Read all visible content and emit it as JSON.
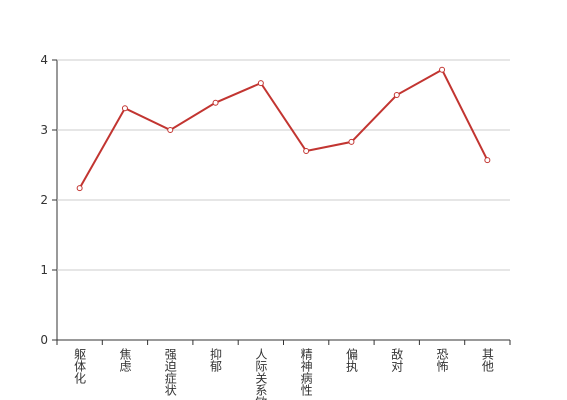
{
  "chart_data": {
    "type": "line",
    "categories": [
      "躯体化",
      "焦虑",
      "强迫症状",
      "抑郁",
      "人际关系敏感",
      "精神病性",
      "偏执",
      "敌对",
      "恐怖",
      "其他"
    ],
    "values": [
      2.17,
      3.31,
      3.0,
      3.39,
      3.67,
      2.7,
      2.83,
      3.5,
      3.86,
      2.57
    ],
    "color": "#c23531",
    "ylim": [
      0,
      4
    ],
    "yticks": [
      0,
      1,
      2,
      3,
      4
    ],
    "grid": true
  }
}
